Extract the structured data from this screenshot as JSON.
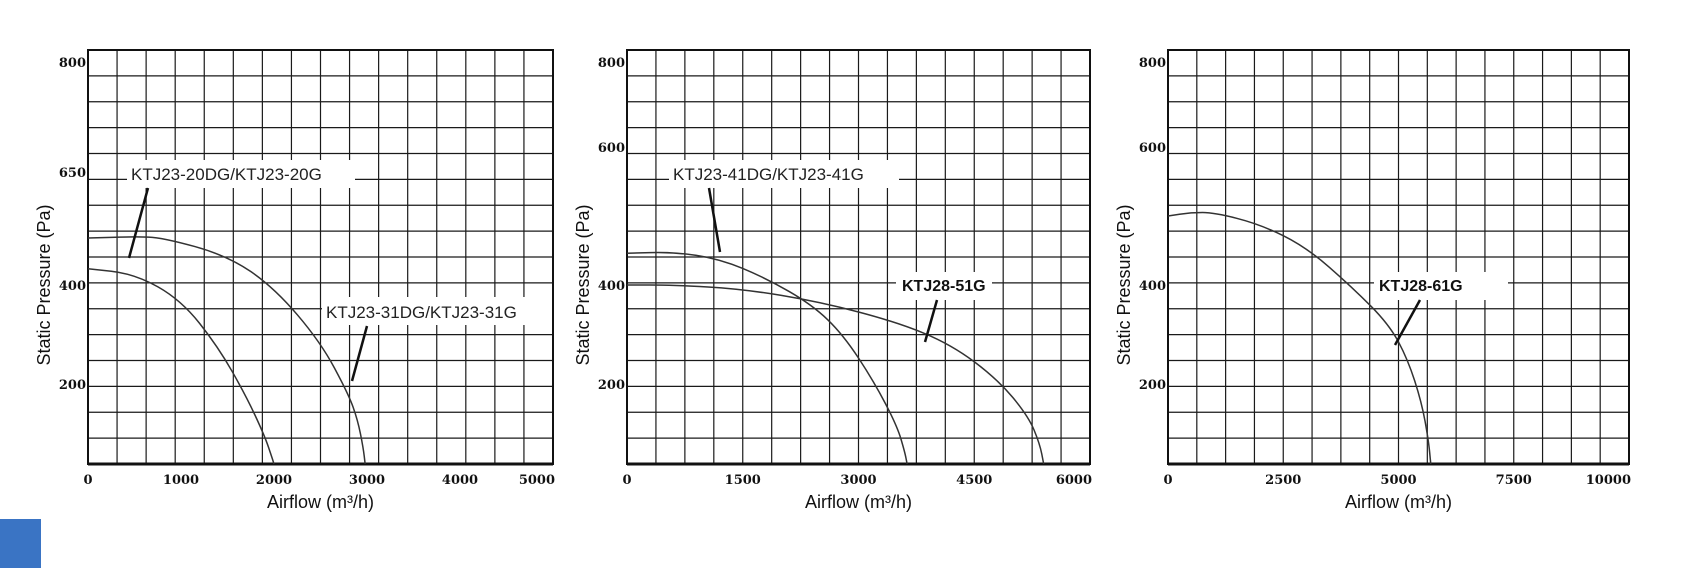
{
  "chart_data": [
    {
      "type": "line",
      "xlabel": "Airflow (m³/h)",
      "ylabel": "Static Pressure (Pa)",
      "xlim": [
        0,
        5000
      ],
      "ylim": [
        0,
        800
      ],
      "x_ticks": [
        "0",
        "1000",
        "2000",
        "3000",
        "4000",
        "5000"
      ],
      "y_ticks": [
        "200",
        "400",
        "650",
        "800"
      ],
      "grid": true,
      "series": [
        {
          "name": "KTJ23-20DG/KTJ23-20G",
          "x": [
            0,
            500,
            1000,
            1400,
            1700,
            1900,
            1980,
            2000
          ],
          "y": [
            436,
            425,
            370,
            275,
            170,
            70,
            15,
            0
          ]
        },
        {
          "name": "KTJ23-31DG/KTJ23-31G",
          "x": [
            0,
            500,
            800,
            1500,
            2000,
            2500,
            2800,
            2900,
            2960,
            2980
          ],
          "y": [
            504,
            507,
            505,
            465,
            395,
            285,
            175,
            110,
            40,
            0
          ]
        }
      ],
      "annotations": [
        {
          "text": "KTJ23-20DG/KTJ23-20G",
          "target_series": 0
        },
        {
          "text": "KTJ23-31DG/KTJ23-31G",
          "target_series": 1
        }
      ]
    },
    {
      "type": "line",
      "xlabel": "Airflow (m³/h)",
      "ylabel": "Static Pressure (Pa)",
      "xlim": [
        0,
        6000
      ],
      "ylim": [
        0,
        800
      ],
      "x_ticks": [
        "0",
        "1500",
        "3000",
        "4500",
        "6000"
      ],
      "y_ticks": [
        "200",
        "400",
        "600",
        "800"
      ],
      "grid": true,
      "series": [
        {
          "name": "KTJ23-41DG/KTJ23-41G",
          "x": [
            0,
            600,
            1200,
            1800,
            2400,
            2800,
            3200,
            3500,
            3600,
            3630
          ],
          "y": [
            446,
            448,
            438,
            410,
            360,
            300,
            205,
            95,
            30,
            0
          ]
        },
        {
          "name": "KTJ28-51G",
          "x": [
            0,
            600,
            1500,
            2500,
            3500,
            4200,
            4800,
            5200,
            5350,
            5400
          ],
          "y": [
            400,
            400,
            392,
            366,
            325,
            280,
            210,
            120,
            50,
            0
          ]
        }
      ],
      "annotations": [
        {
          "text": "KTJ23-41DG/KTJ23-41G",
          "target_series": 0
        },
        {
          "text": "KTJ28-51G",
          "target_series": 1
        }
      ]
    },
    {
      "type": "line",
      "xlabel": "Airflow (m³/h)",
      "ylabel": "Static Pressure (Pa)",
      "xlim": [
        0,
        10000
      ],
      "ylim": [
        0,
        800
      ],
      "x_ticks": [
        "0",
        "2500",
        "5000",
        "7500",
        "10000"
      ],
      "y_ticks": [
        "200",
        "400",
        "600",
        "800"
      ],
      "grid": true,
      "series": [
        {
          "name": "KTJ28-61G",
          "x": [
            0,
            500,
            1000,
            2000,
            3000,
            4000,
            4800,
            5200,
            5500,
            5650,
            5700
          ],
          "y": [
            500,
            505,
            505,
            488,
            455,
            395,
            320,
            250,
            155,
            60,
            0
          ]
        }
      ],
      "annotations": [
        {
          "text": "KTJ28-61G",
          "target_series": 0
        }
      ]
    }
  ]
}
